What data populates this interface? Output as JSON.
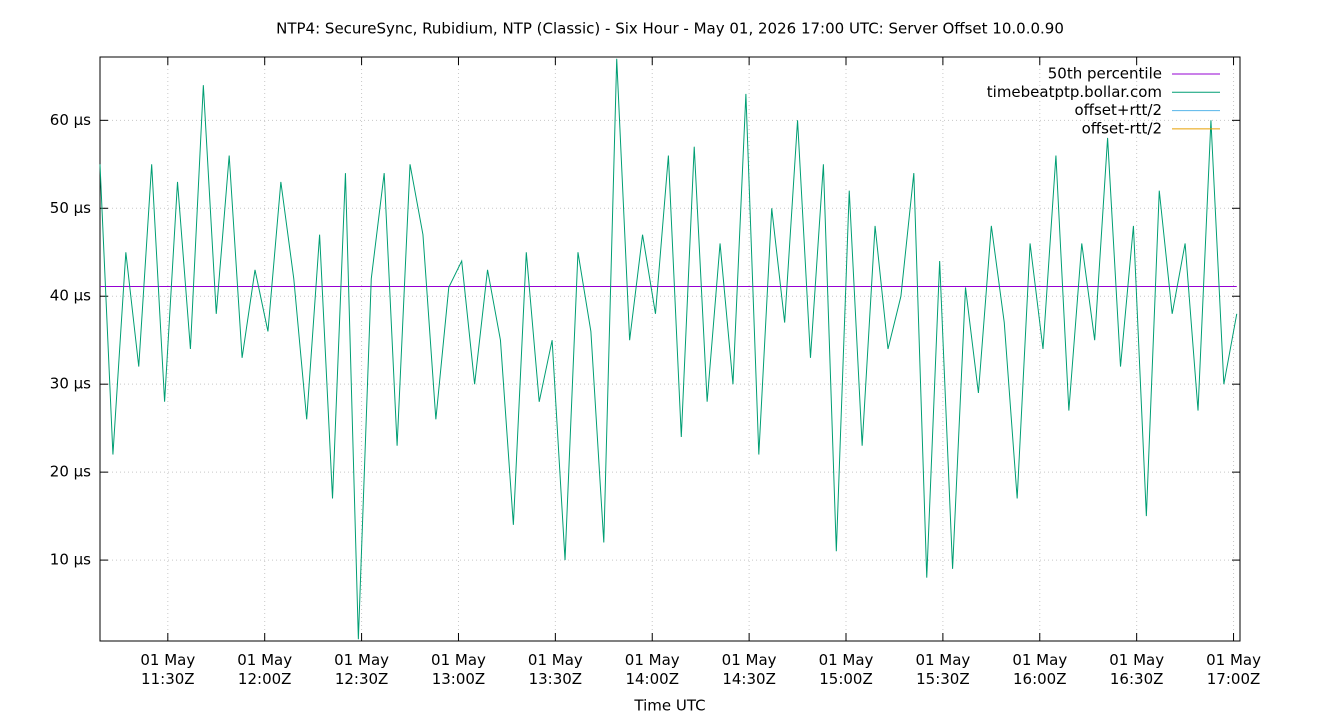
{
  "chart_data": {
    "type": "line",
    "title": "NTP4: SecureSync, Rubidium, NTP (Classic) - Six Hour - May 01, 2026 17:00 UTC: Server Offset 10.0.0.90",
    "x_label": "Time UTC",
    "grid": true,
    "legend": "top-right",
    "xlim": [
      "01 May 11:09Z",
      "01 May 17:02Z"
    ],
    "xticks": [
      {
        "value": "01 May 11:30Z",
        "label": "01 May\n11:30Z"
      },
      {
        "value": "01 May 12:00Z",
        "label": "01 May\n12:00Z"
      },
      {
        "value": "01 May 12:30Z",
        "label": "01 May\n12:30Z"
      },
      {
        "value": "01 May 13:00Z",
        "label": "01 May\n13:00Z"
      },
      {
        "value": "01 May 13:30Z",
        "label": "01 May\n13:30Z"
      },
      {
        "value": "01 May 14:00Z",
        "label": "01 May\n14:00Z"
      },
      {
        "value": "01 May 14:30Z",
        "label": "01 May\n14:30Z"
      },
      {
        "value": "01 May 15:00Z",
        "label": "01 May\n15:00Z"
      },
      {
        "value": "01 May 15:30Z",
        "label": "01 May\n15:30Z"
      },
      {
        "value": "01 May 16:00Z",
        "label": "01 May\n16:00Z"
      },
      {
        "value": "01 May 16:30Z",
        "label": "01 May\n16:30Z"
      },
      {
        "value": "01 May 17:00Z",
        "label": "01 May\n17:00Z"
      }
    ],
    "ylim": [
      0.8,
      67.2
    ],
    "yticks": [
      {
        "value": 10,
        "label": "10 µs"
      },
      {
        "value": 20,
        "label": "20 µs"
      },
      {
        "value": 30,
        "label": "30 µs"
      },
      {
        "value": 40,
        "label": "40 µs"
      },
      {
        "value": 50,
        "label": "50 µs"
      },
      {
        "value": 60,
        "label": "60 µs"
      }
    ],
    "x": [
      "01 May 11:09Z",
      "01 May 11:13Z",
      "01 May 11:17Z",
      "01 May 11:21Z",
      "01 May 11:25Z",
      "01 May 11:29Z",
      "01 May 11:33Z",
      "01 May 11:37Z",
      "01 May 11:41Z",
      "01 May 11:45Z",
      "01 May 11:49Z",
      "01 May 11:53Z",
      "01 May 11:57Z",
      "01 May 12:01Z",
      "01 May 12:05Z",
      "01 May 12:09Z",
      "01 May 12:13Z",
      "01 May 12:17Z",
      "01 May 12:21Z",
      "01 May 12:25Z",
      "01 May 12:29Z",
      "01 May 12:33Z",
      "01 May 12:37Z",
      "01 May 12:41Z",
      "01 May 12:45Z",
      "01 May 12:49Z",
      "01 May 12:53Z",
      "01 May 12:57Z",
      "01 May 13:01Z",
      "01 May 13:05Z",
      "01 May 13:09Z",
      "01 May 13:13Z",
      "01 May 13:17Z",
      "01 May 13:21Z",
      "01 May 13:25Z",
      "01 May 13:29Z",
      "01 May 13:33Z",
      "01 May 13:37Z",
      "01 May 13:41Z",
      "01 May 13:45Z",
      "01 May 13:49Z",
      "01 May 13:53Z",
      "01 May 13:57Z",
      "01 May 14:01Z",
      "01 May 14:05Z",
      "01 May 14:09Z",
      "01 May 14:13Z",
      "01 May 14:17Z",
      "01 May 14:21Z",
      "01 May 14:25Z",
      "01 May 14:29Z",
      "01 May 14:33Z",
      "01 May 14:37Z",
      "01 May 14:41Z",
      "01 May 14:45Z",
      "01 May 14:49Z",
      "01 May 14:53Z",
      "01 May 14:57Z",
      "01 May 15:01Z",
      "01 May 15:05Z",
      "01 May 15:09Z",
      "01 May 15:13Z",
      "01 May 15:17Z",
      "01 May 15:21Z",
      "01 May 15:25Z",
      "01 May 15:29Z",
      "01 May 15:33Z",
      "01 May 15:37Z",
      "01 May 15:41Z",
      "01 May 15:45Z",
      "01 May 15:49Z",
      "01 May 15:53Z",
      "01 May 15:57Z",
      "01 May 16:01Z",
      "01 May 16:05Z",
      "01 May 16:09Z",
      "01 May 16:13Z",
      "01 May 16:17Z",
      "01 May 16:21Z",
      "01 May 16:25Z",
      "01 May 16:29Z",
      "01 May 16:33Z",
      "01 May 16:37Z",
      "01 May 16:41Z",
      "01 May 16:45Z",
      "01 May 16:49Z",
      "01 May 16:53Z",
      "01 May 16:57Z",
      "01 May 17:01Z"
    ],
    "series": [
      {
        "name": "50th percentile",
        "color": "#9400d3",
        "values": [
          41.1,
          41.1,
          41.1,
          41.1,
          41.1,
          41.1,
          41.1,
          41.1,
          41.1,
          41.1,
          41.1,
          41.1,
          41.1,
          41.1,
          41.1,
          41.1,
          41.1,
          41.1,
          41.1,
          41.1,
          41.1,
          41.1,
          41.1,
          41.1,
          41.1,
          41.1,
          41.1,
          41.1,
          41.1,
          41.1,
          41.1,
          41.1,
          41.1,
          41.1,
          41.1,
          41.1,
          41.1,
          41.1,
          41.1,
          41.1,
          41.1,
          41.1,
          41.1,
          41.1,
          41.1,
          41.1,
          41.1,
          41.1,
          41.1,
          41.1,
          41.1,
          41.1,
          41.1,
          41.1,
          41.1,
          41.1,
          41.1,
          41.1,
          41.1,
          41.1,
          41.1,
          41.1,
          41.1,
          41.1,
          41.1,
          41.1,
          41.1,
          41.1,
          41.1,
          41.1,
          41.1,
          41.1,
          41.1,
          41.1,
          41.1,
          41.1,
          41.1,
          41.1,
          41.1,
          41.1,
          41.1,
          41.1,
          41.1,
          41.1,
          41.1,
          41.1,
          41.1,
          41.1,
          41.1
        ]
      },
      {
        "name": "timebeatptp.bollar.com",
        "color": "#009e73",
        "values": [
          55,
          22,
          45,
          32,
          55,
          28,
          53,
          34,
          64,
          38,
          56,
          33,
          43,
          36,
          53,
          42,
          26,
          47,
          17,
          54,
          1,
          42,
          54,
          23,
          55,
          47,
          26,
          41,
          44,
          30,
          43,
          35,
          14,
          45,
          28,
          35,
          10,
          45,
          36,
          12,
          67,
          35,
          47,
          38,
          56,
          24,
          57,
          28,
          46,
          30,
          63,
          22,
          50,
          37,
          60,
          33,
          55,
          11,
          52,
          23,
          48,
          34,
          40,
          54,
          8,
          44,
          9,
          41,
          29,
          48,
          37,
          17,
          46,
          34,
          56,
          27,
          46,
          35,
          58,
          32,
          48,
          15,
          52,
          38,
          46,
          27,
          60,
          30,
          38
        ]
      },
      {
        "name": "offset+rtt/2",
        "color": "#56b4e9",
        "values": [
          null,
          null,
          null,
          null,
          null,
          null,
          null,
          null,
          null,
          null,
          null,
          null,
          null,
          null,
          null,
          null,
          null,
          null,
          null,
          null,
          null,
          null,
          null,
          null,
          null,
          null,
          null,
          null,
          null,
          null,
          null,
          null,
          null,
          null,
          null,
          null,
          null,
          null,
          null,
          null,
          null,
          null,
          null,
          null,
          null,
          null,
          null,
          null,
          null,
          null,
          null,
          null,
          null,
          null,
          null,
          null,
          null,
          null,
          null,
          null,
          null,
          null,
          null,
          null,
          null,
          null,
          null,
          null,
          null,
          null,
          null,
          null,
          null,
          null,
          null,
          null,
          null,
          null,
          null,
          null,
          null,
          null,
          null,
          null,
          null,
          null,
          null,
          null,
          null
        ]
      },
      {
        "name": "offset-rtt/2",
        "color": "#e69f00",
        "values": [
          null,
          null,
          null,
          null,
          null,
          null,
          null,
          null,
          null,
          null,
          null,
          null,
          null,
          null,
          null,
          null,
          null,
          null,
          null,
          null,
          null,
          null,
          null,
          null,
          null,
          null,
          null,
          null,
          null,
          null,
          null,
          null,
          null,
          null,
          null,
          null,
          null,
          null,
          null,
          null,
          null,
          null,
          null,
          null,
          null,
          null,
          null,
          null,
          null,
          null,
          null,
          null,
          null,
          null,
          null,
          null,
          null,
          null,
          null,
          null,
          null,
          null,
          null,
          null,
          null,
          null,
          null,
          null,
          null,
          null,
          null,
          null,
          null,
          null,
          null,
          null,
          null,
          null,
          null,
          null,
          null,
          null,
          null,
          null,
          null,
          null,
          null,
          null,
          null
        ]
      }
    ]
  }
}
